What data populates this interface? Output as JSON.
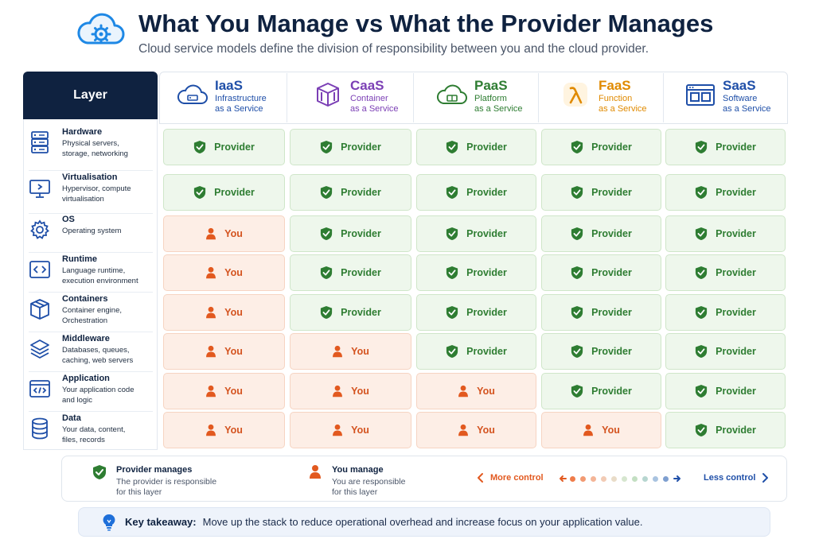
{
  "header": {
    "title": "What You Manage vs What the Provider Manages",
    "subtitle": "Cloud service models define the division of responsibility between you and the cloud provider.",
    "icon": "cloud-gear-icon"
  },
  "layer_header": "Layer",
  "layers": [
    {
      "name": "Hardware",
      "desc1": "Physical servers,",
      "desc2": "storage, networking",
      "icon": "server-icon"
    },
    {
      "name": "Virtualisation",
      "desc1": "Hypervisor, compute",
      "desc2": "virtualisation",
      "icon": "monitor-icon"
    },
    {
      "name": "OS",
      "desc1": "Operating system",
      "desc2": "",
      "icon": "gear-icon"
    },
    {
      "name": "Runtime",
      "desc1": "Language runtime,",
      "desc2": "execution environment",
      "icon": "code-icon"
    },
    {
      "name": "Containers",
      "desc1": "Container engine,",
      "desc2": "Orchestration",
      "icon": "box-icon"
    },
    {
      "name": "Middleware",
      "desc1": "Databases, queues,",
      "desc2": "caching, web servers",
      "icon": "layers-icon"
    },
    {
      "name": "Application",
      "desc1": "Your application code",
      "desc2": "and logic",
      "icon": "app-window-icon"
    },
    {
      "name": "Data",
      "desc1": "Your data, content,",
      "desc2": "files, records",
      "icon": "database-icon"
    }
  ],
  "models": [
    {
      "abbr": "IaaS",
      "line1": "Infrastructure",
      "line2": "as a Service",
      "color": "#1f4fa8",
      "icon": "cloud-server-icon"
    },
    {
      "abbr": "CaaS",
      "line1": "Container",
      "line2": "as a Service",
      "color": "#7b3fb5",
      "icon": "container-box-icon"
    },
    {
      "abbr": "PaaS",
      "line1": "Platform",
      "line2": "as a Service",
      "color": "#2e7d32",
      "icon": "cloud-platform-icon"
    },
    {
      "abbr": "FaaS",
      "line1": "Function",
      "line2": "as a Service",
      "color": "#e08a00",
      "icon": "lambda-icon"
    },
    {
      "abbr": "SaaS",
      "line1": "Software",
      "line2": "as a Service",
      "color": "#1f4fa8",
      "icon": "browser-app-icon"
    }
  ],
  "labels": {
    "provider": "Provider",
    "you": "You"
  },
  "matrix": [
    [
      "provider",
      "provider",
      "provider",
      "provider",
      "provider"
    ],
    [
      "provider",
      "provider",
      "provider",
      "provider",
      "provider"
    ],
    [
      "you",
      "provider",
      "provider",
      "provider",
      "provider"
    ],
    [
      "you",
      "provider",
      "provider",
      "provider",
      "provider"
    ],
    [
      "you",
      "provider",
      "provider",
      "provider",
      "provider"
    ],
    [
      "you",
      "you",
      "provider",
      "provider",
      "provider"
    ],
    [
      "you",
      "you",
      "you",
      "provider",
      "provider"
    ],
    [
      "you",
      "you",
      "you",
      "you",
      "provider"
    ]
  ],
  "legend": {
    "provider_title": "Provider manages",
    "provider_desc1": "The provider is responsible",
    "provider_desc2": "for this layer",
    "you_title": "You manage",
    "you_desc1": "You are responsible",
    "you_desc2": "for this layer",
    "more_control": "More control",
    "less_control": "Less control"
  },
  "takeaway": {
    "label": "Key takeaway:",
    "text": "Move up the stack to reduce operational overhead and increase focus on your application value."
  },
  "colors": {
    "navy": "#0f2240",
    "provider": "#2e7d32",
    "you": "#e2591f"
  }
}
